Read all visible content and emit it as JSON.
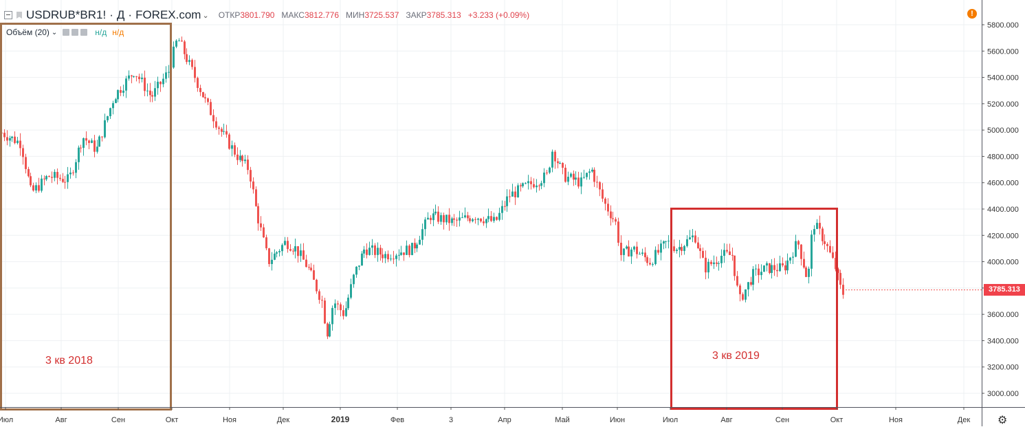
{
  "header": {
    "symbol": "USDRUB*BR1!",
    "separator1": "·",
    "interval": "Д",
    "separator2": "·",
    "source": "FOREX.com",
    "open_label": "ОТКР",
    "open_value": "3801.790",
    "high_label": "МАКС",
    "high_value": "3812.776",
    "low_label": "МИН",
    "low_value": "3725.537",
    "close_label": "ЗАКР",
    "close_value": "3785.313",
    "change": "+3.233 (+0.09%)"
  },
  "volume_indicator": {
    "label": "Объём (20)",
    "value1": "н/д",
    "value2": "н/д"
  },
  "annotations": {
    "q3_2018": "3 кв 2018",
    "q3_2019": "3 кв 2019",
    "q3_2018_color": "#a0704a",
    "q3_2019_color": "#d32f2f"
  },
  "price_tag": "3785.313",
  "colors": {
    "up": "#26a69a",
    "down": "#ef5350",
    "grid": "#eef0f3",
    "axis_text": "#333333"
  },
  "chart_data": {
    "type": "candlestick",
    "symbol": "USDRUB*BR1!",
    "y_range": [
      2900,
      5900
    ],
    "y_ticks": [
      "5800.000",
      "5600.000",
      "5400.000",
      "5200.000",
      "5000.000",
      "4800.000",
      "4600.000",
      "4400.000",
      "4200.000",
      "4000.000",
      "3800.000",
      "3600.000",
      "3400.000",
      "3200.000",
      "3000.000"
    ],
    "x_labels": [
      "Июл",
      "Авг",
      "Сен",
      "Окт",
      "Ноя",
      "Дек",
      "2019",
      "Фев",
      "3",
      "Апр",
      "Май",
      "Июн",
      "Июл",
      "Авг",
      "Сен",
      "Окт",
      "Ноя",
      "Дек"
    ],
    "bold_x_labels": [
      "2019"
    ],
    "last_close": 3785.313,
    "key_closes": [
      {
        "period": "Июл 2018",
        "value": 4950
      },
      {
        "period": "Авг 2018",
        "value": 4600
      },
      {
        "period": "Сен 2018",
        "value": 5300
      },
      {
        "period": "Окт 2018",
        "value": 5650
      },
      {
        "period": "Ноя 2018",
        "value": 4900
      },
      {
        "period": "Дек 2018",
        "value": 4000
      },
      {
        "period": "янв 2019",
        "value": 3650
      },
      {
        "period": "Фев 2019",
        "value": 4100
      },
      {
        "period": "Мар 2019",
        "value": 4400
      },
      {
        "period": "Апр 2019",
        "value": 4550
      },
      {
        "period": "Май 2019",
        "value": 4700
      },
      {
        "period": "Июн 2019",
        "value": 4050
      },
      {
        "period": "Июл 2019",
        "value": 4150
      },
      {
        "period": "Авг 2019",
        "value": 3850
      },
      {
        "period": "Сен 2019",
        "value": 4100
      },
      {
        "period": "Окт 2019",
        "value": 3785
      }
    ]
  }
}
